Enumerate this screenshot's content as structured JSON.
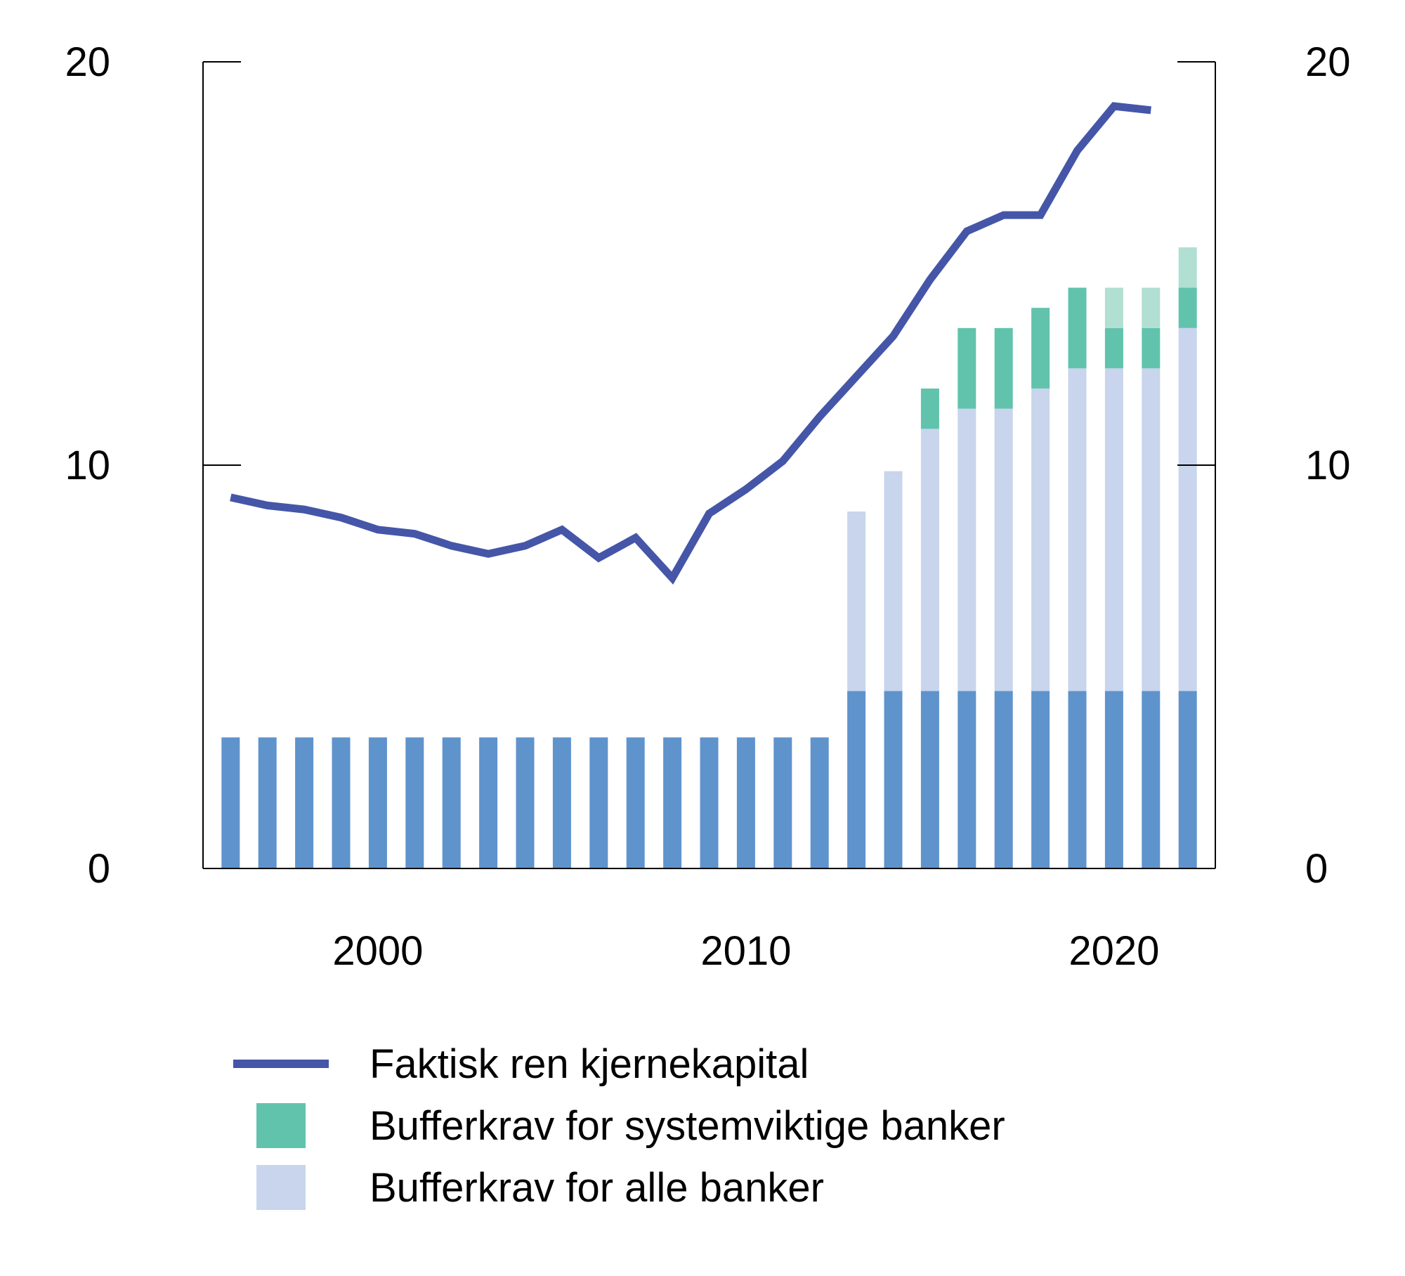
{
  "chart_data": {
    "type": "bar",
    "x": [
      1996,
      1997,
      1998,
      1999,
      2000,
      2001,
      2002,
      2003,
      2004,
      2005,
      2006,
      2007,
      2008,
      2009,
      2010,
      2011,
      2012,
      2013,
      2014,
      2015,
      2016,
      2017,
      2018,
      2019,
      2020,
      2021,
      2022
    ],
    "x_ticks": [
      "2000",
      "2010",
      "2020"
    ],
    "x_tick_values": [
      2000,
      2010,
      2020
    ],
    "y_ticks_left": [
      "0",
      "10",
      "20"
    ],
    "y_ticks_right": [
      "0",
      "10",
      "20"
    ],
    "ylim": [
      0,
      20
    ],
    "grid": false,
    "legend_position": "bottom",
    "colors": {
      "line": "#4556a8",
      "base": "#5f93cc",
      "all_banks": "#c8d5ec",
      "systemic": "#62c3ad",
      "systemic_light": "#b1dfd2"
    },
    "series": [
      {
        "key": "base",
        "kind": "bar",
        "values": [
          3.25,
          3.25,
          3.25,
          3.25,
          3.25,
          3.25,
          3.25,
          3.25,
          3.25,
          3.25,
          3.25,
          3.25,
          3.25,
          3.25,
          3.25,
          3.25,
          3.25,
          4.4,
          4.4,
          4.4,
          4.4,
          4.4,
          4.4,
          4.4,
          4.4,
          4.4,
          4.4
        ]
      },
      {
        "key": "all_banks",
        "name": "Bufferkrav for alle banker",
        "kind": "bar",
        "values": [
          0,
          0,
          0,
          0,
          0,
          0,
          0,
          0,
          0,
          0,
          0,
          0,
          0,
          0,
          0,
          0,
          0,
          4.45,
          5.45,
          6.5,
          7.0,
          7.0,
          7.5,
          8.0,
          8.0,
          8.0,
          9.0
        ]
      },
      {
        "key": "systemic",
        "name": "Bufferkrav for systemviktige banker",
        "kind": "bar",
        "values": [
          0,
          0,
          0,
          0,
          0,
          0,
          0,
          0,
          0,
          0,
          0,
          0,
          0,
          0,
          0,
          0,
          0,
          0,
          0,
          1.0,
          2.0,
          2.0,
          2.0,
          2.0,
          1.0,
          1.0,
          1.0
        ]
      },
      {
        "key": "systemic_light",
        "kind": "bar",
        "values": [
          0,
          0,
          0,
          0,
          0,
          0,
          0,
          0,
          0,
          0,
          0,
          0,
          0,
          0,
          0,
          0,
          0,
          0,
          0,
          0,
          0,
          0,
          0,
          0,
          1.0,
          1.0,
          1.0
        ]
      },
      {
        "key": "line",
        "name": "Faktisk ren kjernekapital",
        "kind": "line",
        "x": [
          1996,
          1997,
          1998,
          1999,
          2000,
          2001,
          2002,
          2003,
          2004,
          2005,
          2006,
          2007,
          2008,
          2009,
          2010,
          2011,
          2012,
          2013,
          2014,
          2015,
          2016,
          2017,
          2018,
          2019,
          2020,
          2021
        ],
        "values": [
          9.2,
          9.0,
          8.9,
          8.7,
          8.4,
          8.3,
          8.0,
          7.8,
          8.0,
          8.4,
          7.7,
          8.2,
          7.2,
          8.8,
          9.4,
          10.1,
          11.2,
          12.2,
          13.2,
          14.6,
          15.8,
          16.2,
          16.2,
          17.8,
          18.9,
          18.8
        ]
      }
    ]
  },
  "legend": {
    "line_label": "Faktisk ren kjernekapital",
    "systemic_label": "Bufferkrav for systemviktige banker",
    "all_banks_label": "Bufferkrav for alle banker"
  }
}
